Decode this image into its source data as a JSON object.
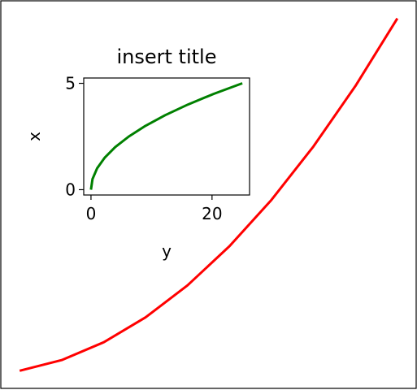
{
  "chart_data": [
    {
      "type": "line",
      "role": "main",
      "title": "",
      "xlabel": "",
      "ylabel": "",
      "ticks_visible": false,
      "x": [
        1,
        2,
        3,
        4,
        5,
        6,
        7,
        8,
        9,
        10
      ],
      "xlim": [
        0.55,
        10.45
      ],
      "ylim": [
        -3.95,
        104.95
      ],
      "series": [
        {
          "color": "#ff0000",
          "values": [
            1,
            4,
            9,
            16,
            25,
            36,
            49,
            64,
            81,
            100
          ]
        }
      ]
    },
    {
      "type": "line",
      "role": "inset",
      "title": "insert title",
      "xlabel": "y",
      "ylabel": "x",
      "xlim": [
        -1.2,
        26.2
      ],
      "ylim": [
        -0.25,
        5.25
      ],
      "xticks": [
        0,
        20
      ],
      "yticks": [
        0,
        5
      ],
      "xtick_labels": [
        "0",
        "20"
      ],
      "ytick_labels": [
        "0",
        "5"
      ],
      "x": [
        0,
        0.25,
        1,
        2.25,
        4,
        6.25,
        9,
        12.25,
        16,
        20.25,
        25
      ],
      "series": [
        {
          "color": "#008000",
          "values": [
            0,
            0.5,
            1,
            1.5,
            2,
            2.5,
            3,
            3.5,
            4,
            4.5,
            5
          ]
        }
      ]
    }
  ]
}
